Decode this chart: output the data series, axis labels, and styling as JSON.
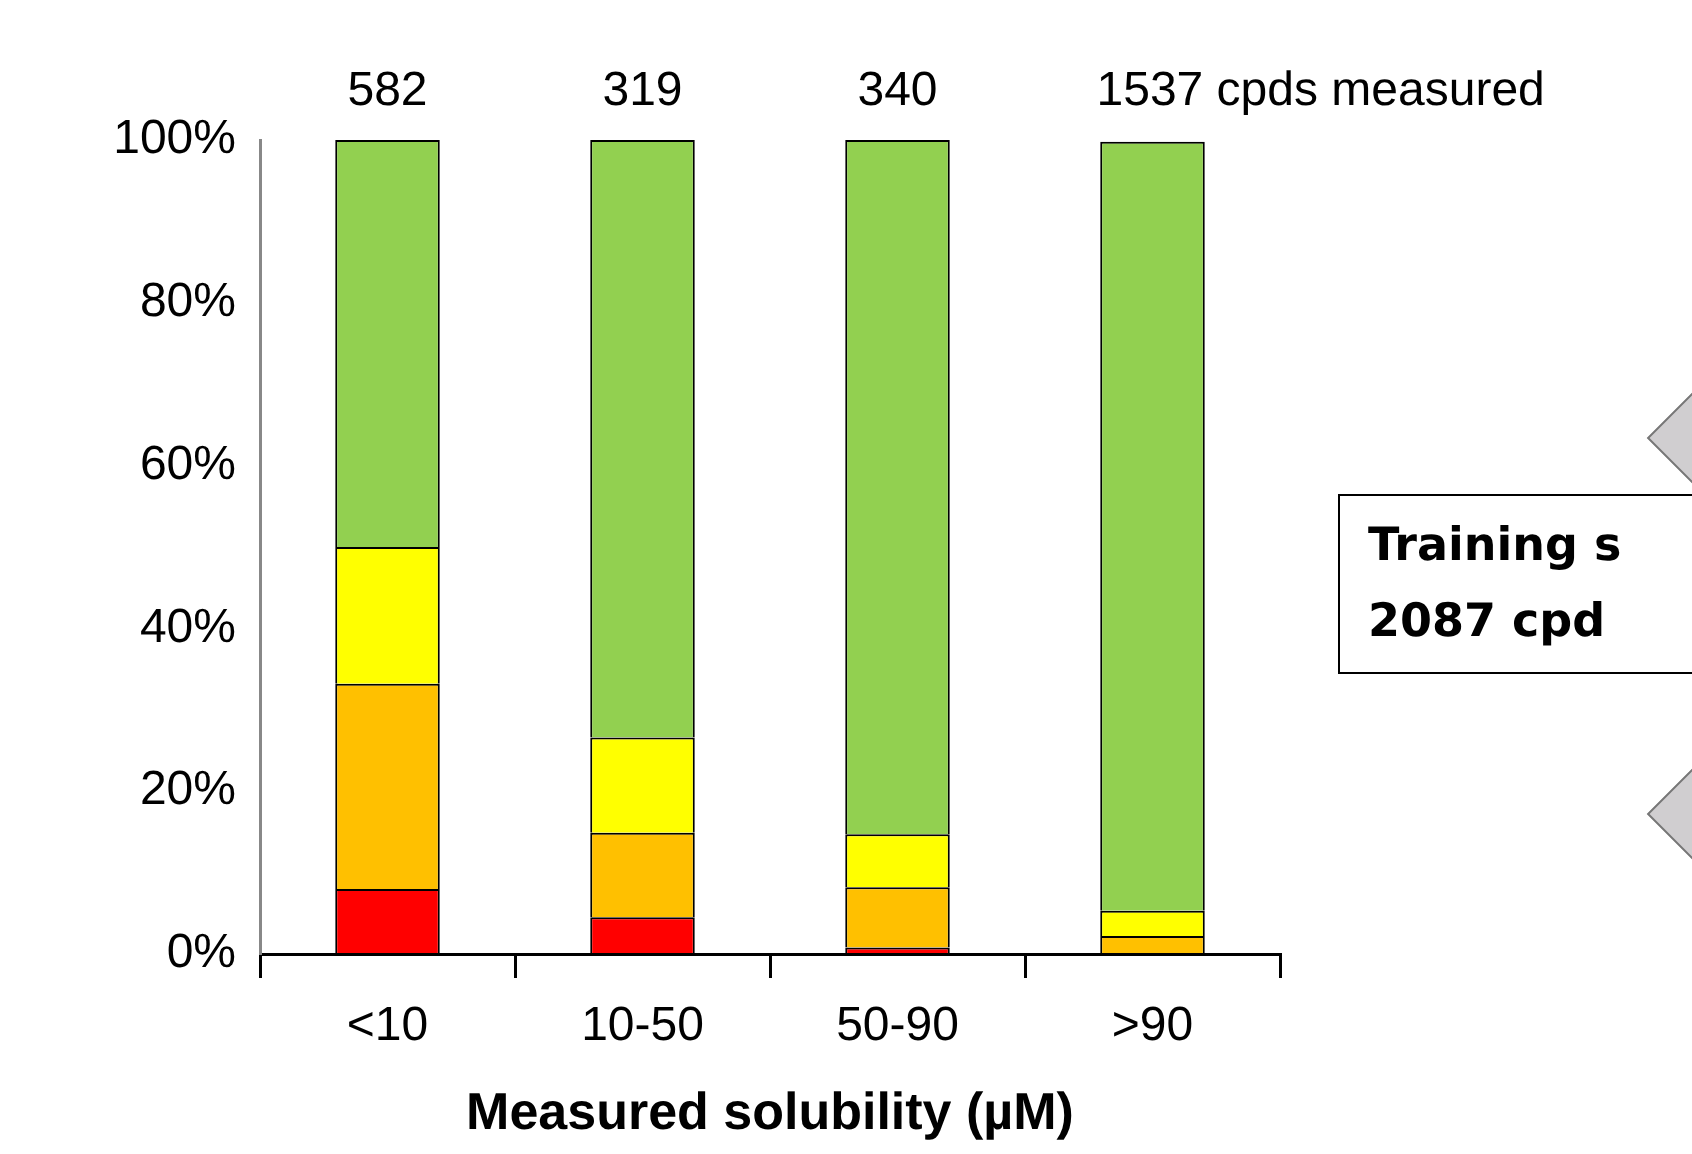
{
  "chart_data": {
    "type": "bar",
    "stacked": true,
    "xlabel": "Measured solubility (µM)",
    "categories": [
      "<10",
      "10-50",
      "50-90",
      ">90"
    ],
    "series": [
      {
        "color": "#ff0000",
        "values": [
          8,
          4.5,
          0.8,
          null
        ]
      },
      {
        "color": "#ffc000",
        "values": [
          25.2,
          10.4,
          7.4,
          2.2
        ]
      },
      {
        "color": "#ffff00",
        "values": [
          16.8,
          11.7,
          6.5,
          3.1
        ]
      },
      {
        "color": "#92d050",
        "values": [
          50,
          73.4,
          85.3,
          94.5
        ]
      }
    ],
    "ylim": [
      0,
      100
    ],
    "yticks": [
      {
        "value": 0,
        "label": "0%"
      },
      {
        "value": 20,
        "label": "20%"
      },
      {
        "value": 40,
        "label": "40%"
      },
      {
        "value": 60,
        "label": "60%"
      },
      {
        "value": 80,
        "label": "80%"
      },
      {
        "value": 100,
        "label": "100%"
      }
    ],
    "annotations": [
      {
        "text": "582",
        "x": "<10",
        "y": 100
      },
      {
        "text": "319",
        "x": "10-50",
        "y": 100
      },
      {
        "text": "340",
        "x": "50-90",
        "y": 100
      },
      {
        "text": "1537 cpds measured",
        "x": ">90",
        "y": 100
      },
      "Training s\n2087 cpd"
    ],
    "grid": false,
    "legend": false
  }
}
